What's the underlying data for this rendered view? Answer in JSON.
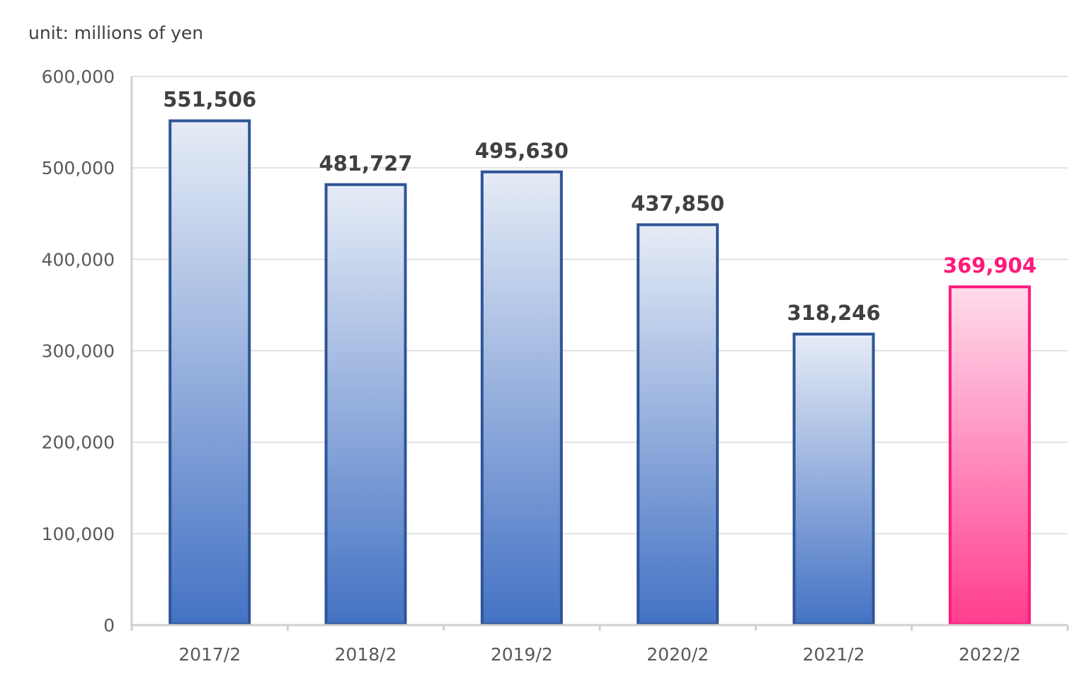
{
  "unit_label": "unit: millions of yen",
  "colors": {
    "bar_fill_top": "#e6ecf6",
    "bar_fill_bottom": "#4472c4",
    "bar_stroke": "#2f5597",
    "highlight_fill_top": "#ffdcec",
    "highlight_fill_bottom": "#ff3d8e",
    "highlight_stroke": "#ff1a7a",
    "label_dark": "#404040",
    "gridline": "#d9d9d9",
    "axis": "#d0d0d0"
  },
  "chart_data": {
    "type": "bar",
    "categories": [
      "2017/2",
      "2018/2",
      "2019/2",
      "2020/2",
      "2021/2",
      "2022/2"
    ],
    "values": [
      551506,
      481727,
      495630,
      437850,
      318246,
      369904
    ],
    "data_labels": [
      "551,506",
      "481,727",
      "495,630",
      "437,850",
      "318,246",
      "369,904"
    ],
    "highlight_index": 5,
    "ylim": [
      0,
      600000
    ],
    "yticks": [
      0,
      100000,
      200000,
      300000,
      400000,
      500000,
      600000
    ],
    "ytick_labels": [
      "0",
      "100,000",
      "200,000",
      "300,000",
      "400,000",
      "500,000",
      "600,000"
    ],
    "grid": true,
    "legend": "none",
    "title": "",
    "xlabel": "",
    "ylabel": ""
  }
}
